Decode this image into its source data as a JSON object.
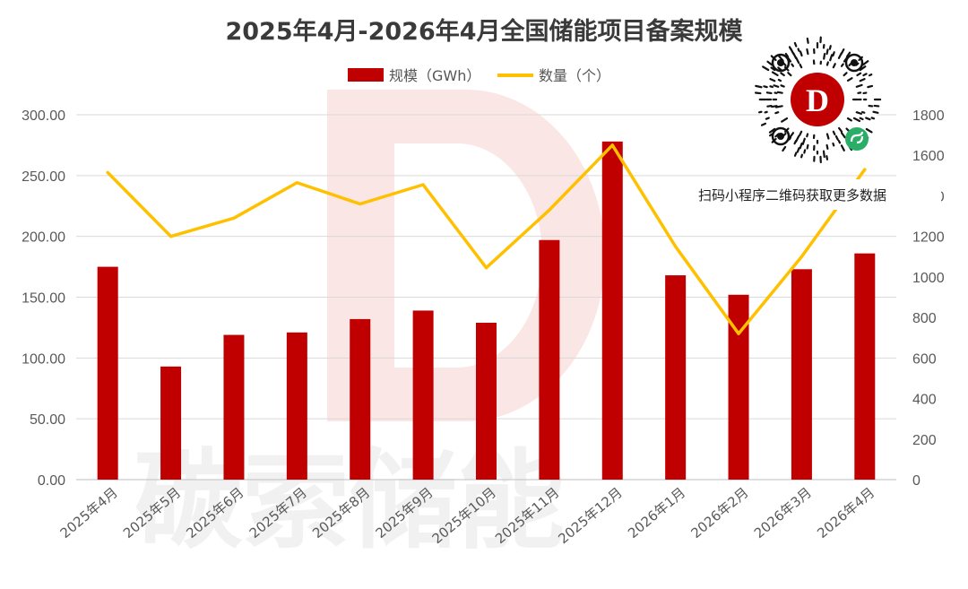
{
  "chart_data": {
    "type": "bar+line",
    "title": "2025年4月-2026年4月全国储能项目备案规模",
    "categories": [
      "2025年4月",
      "2025年5月",
      "2025年6月",
      "2025年7月",
      "2025年8月",
      "2025年9月",
      "2025年10月",
      "2025年11月",
      "2025年12月",
      "2026年1月",
      "2026年2月",
      "2026年3月",
      "2026年4月"
    ],
    "series": [
      {
        "name": "规模（GWh）",
        "type": "bar",
        "axis": "left",
        "color": "#c00000",
        "values": [
          175,
          93,
          119,
          121,
          132,
          139,
          129,
          197,
          278,
          168,
          152,
          173,
          186
        ]
      },
      {
        "name": "数量（个）",
        "type": "line",
        "axis": "right",
        "color": "#ffc000",
        "values": [
          1515,
          1200,
          1290,
          1465,
          1360,
          1455,
          1045,
          1330,
          1650,
          1150,
          720,
          1100,
          1530
        ]
      }
    ],
    "ylim_left": [
      0,
      300
    ],
    "ylim_right": [
      0,
      1800
    ],
    "yticks_left": [
      "0.00",
      "50.00",
      "100.00",
      "150.00",
      "200.00",
      "250.00",
      "300.00"
    ],
    "yticks_right": [
      "0",
      "200",
      "400",
      "600",
      "800",
      "1000",
      "1200",
      "1400",
      "1600",
      "1800"
    ],
    "grid": true,
    "legend_position": "top-center"
  },
  "overlay": {
    "qr_caption": "扫码小程序二维码获取更多数据",
    "qr_logo_letter": "D",
    "watermark_text": "碳索储能"
  }
}
